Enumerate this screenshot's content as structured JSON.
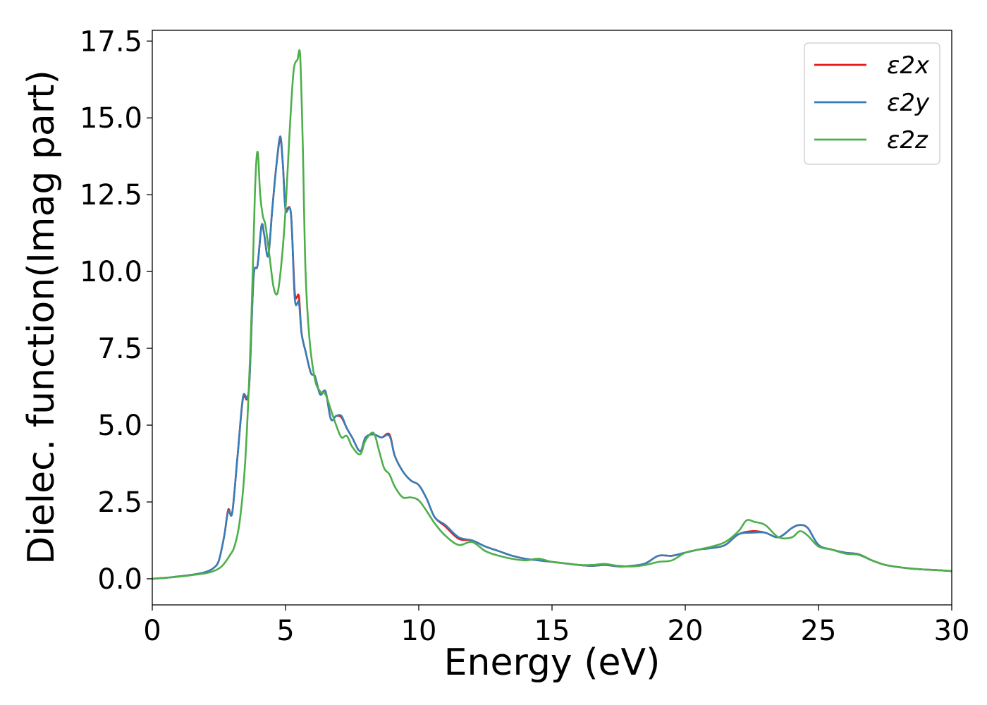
{
  "chart_data": {
    "type": "line",
    "title": "",
    "xlabel": "Energy (eV)",
    "ylabel": "Dielec. function(Imag part)",
    "xlim": [
      0,
      30
    ],
    "ylim": [
      -0.85,
      17.85
    ],
    "xticks": [
      0,
      5,
      10,
      15,
      20,
      25,
      30
    ],
    "xtick_labels": [
      "0",
      "5",
      "10",
      "15",
      "20",
      "25",
      "30"
    ],
    "yticks": [
      0.0,
      2.5,
      5.0,
      7.5,
      10.0,
      12.5,
      15.0,
      17.5
    ],
    "ytick_labels": [
      "0.0",
      "2.5",
      "5.0",
      "7.5",
      "10.0",
      "12.5",
      "15.0",
      "17.5"
    ],
    "grid": false,
    "legend_position": "top-right",
    "series": [
      {
        "name": "ε2x",
        "color": "#e41a1c",
        "x": [
          0,
          0.5,
          1,
          1.5,
          2,
          2.3,
          2.5,
          2.7,
          2.85,
          3.0,
          3.2,
          3.4,
          3.55,
          3.65,
          3.8,
          3.95,
          4.1,
          4.2,
          4.35,
          4.5,
          4.65,
          4.8,
          4.9,
          5.0,
          5.2,
          5.35,
          5.5,
          5.6,
          5.75,
          5.95,
          6.1,
          6.3,
          6.5,
          6.7,
          6.9,
          7.1,
          7.3,
          7.5,
          7.8,
          8.0,
          8.3,
          8.6,
          8.9,
          9.1,
          9.4,
          9.7,
          10.0,
          10.3,
          10.6,
          11.0,
          11.5,
          12.0,
          12.5,
          13.0,
          13.5,
          14.0,
          14.5,
          15.0,
          15.5,
          16.0,
          16.5,
          17.0,
          17.5,
          18.0,
          18.5,
          19.0,
          19.5,
          20.0,
          20.5,
          21.0,
          21.5,
          22.0,
          22.5,
          23.0,
          23.5,
          24.0,
          24.3,
          24.6,
          25.0,
          25.5,
          26.0,
          26.5,
          27.0,
          27.5,
          28.0,
          28.5,
          29.0,
          29.5,
          30.0
        ],
        "y": [
          0.0,
          0.03,
          0.08,
          0.13,
          0.22,
          0.35,
          0.6,
          1.4,
          2.25,
          2.15,
          4.0,
          5.85,
          5.85,
          6.5,
          9.8,
          10.2,
          11.5,
          11.2,
          10.5,
          12.0,
          13.4,
          14.3,
          13.5,
          12.1,
          11.9,
          9.3,
          9.2,
          8.0,
          7.4,
          6.7,
          6.6,
          6.0,
          6.1,
          5.2,
          5.3,
          5.25,
          4.9,
          4.6,
          4.15,
          4.6,
          4.7,
          4.6,
          4.7,
          4.0,
          3.5,
          3.2,
          3.05,
          2.6,
          2.0,
          1.7,
          1.3,
          1.25,
          1.05,
          0.9,
          0.75,
          0.65,
          0.6,
          0.55,
          0.5,
          0.45,
          0.42,
          0.45,
          0.4,
          0.42,
          0.5,
          0.75,
          0.75,
          0.85,
          0.95,
          1.0,
          1.1,
          1.45,
          1.55,
          1.5,
          1.35,
          1.65,
          1.75,
          1.65,
          1.1,
          0.95,
          0.85,
          0.8,
          0.6,
          0.45,
          0.38,
          0.33,
          0.3,
          0.28,
          0.25
        ]
      },
      {
        "name": "ε2y",
        "color": "#377eb8",
        "x": [
          0,
          0.5,
          1,
          1.5,
          2,
          2.3,
          2.5,
          2.7,
          2.85,
          3.0,
          3.2,
          3.4,
          3.55,
          3.65,
          3.8,
          3.95,
          4.1,
          4.2,
          4.35,
          4.5,
          4.65,
          4.8,
          4.9,
          5.0,
          5.2,
          5.35,
          5.5,
          5.6,
          5.75,
          5.95,
          6.1,
          6.3,
          6.5,
          6.7,
          6.9,
          7.1,
          7.3,
          7.5,
          7.8,
          8.0,
          8.3,
          8.6,
          8.9,
          9.1,
          9.4,
          9.7,
          10.0,
          10.3,
          10.6,
          11.0,
          11.5,
          12.0,
          12.5,
          13.0,
          13.5,
          14.0,
          14.5,
          15.0,
          15.5,
          16.0,
          16.5,
          17.0,
          17.5,
          18.0,
          18.5,
          19.0,
          19.5,
          20.0,
          20.5,
          21.0,
          21.5,
          22.0,
          22.5,
          23.0,
          23.5,
          24.0,
          24.3,
          24.6,
          25.0,
          25.5,
          26.0,
          26.5,
          27.0,
          27.5,
          28.0,
          28.5,
          29.0,
          29.5,
          30.0
        ],
        "y": [
          0.0,
          0.03,
          0.08,
          0.13,
          0.22,
          0.35,
          0.6,
          1.4,
          2.2,
          2.15,
          4.0,
          5.9,
          5.9,
          6.5,
          9.8,
          10.2,
          11.5,
          11.2,
          10.5,
          12.0,
          13.4,
          14.4,
          13.5,
          12.0,
          11.9,
          9.1,
          9.0,
          8.0,
          7.4,
          6.7,
          6.6,
          6.0,
          6.1,
          5.2,
          5.3,
          5.3,
          4.9,
          4.6,
          4.15,
          4.6,
          4.7,
          4.6,
          4.65,
          4.0,
          3.5,
          3.2,
          3.05,
          2.6,
          2.0,
          1.75,
          1.35,
          1.25,
          1.05,
          0.9,
          0.75,
          0.65,
          0.6,
          0.55,
          0.5,
          0.45,
          0.42,
          0.45,
          0.4,
          0.42,
          0.5,
          0.75,
          0.75,
          0.85,
          0.95,
          1.0,
          1.1,
          1.45,
          1.5,
          1.5,
          1.35,
          1.65,
          1.75,
          1.65,
          1.1,
          0.95,
          0.85,
          0.8,
          0.6,
          0.45,
          0.38,
          0.33,
          0.3,
          0.28,
          0.25
        ]
      },
      {
        "name": "ε2z",
        "color": "#4daf4a",
        "x": [
          0,
          0.5,
          1,
          1.5,
          2,
          2.3,
          2.6,
          2.9,
          3.1,
          3.3,
          3.5,
          3.7,
          3.85,
          3.95,
          4.05,
          4.15,
          4.25,
          4.4,
          4.55,
          4.7,
          4.85,
          5.0,
          5.15,
          5.3,
          5.45,
          5.55,
          5.65,
          5.75,
          5.9,
          6.1,
          6.3,
          6.5,
          6.7,
          6.9,
          7.1,
          7.3,
          7.5,
          7.8,
          8.0,
          8.3,
          8.5,
          8.7,
          8.9,
          9.1,
          9.4,
          9.7,
          10.0,
          10.3,
          10.6,
          11.0,
          11.5,
          12.0,
          12.5,
          13.0,
          13.5,
          14.0,
          14.5,
          15.0,
          15.5,
          16.0,
          16.5,
          17.0,
          17.5,
          18.0,
          18.5,
          19.0,
          19.5,
          20.0,
          20.5,
          21.0,
          21.5,
          22.0,
          22.3,
          22.6,
          23.0,
          23.5,
          24.0,
          24.3,
          24.6,
          25.0,
          25.5,
          26.0,
          26.5,
          27.0,
          27.5,
          28.0,
          28.5,
          29.0,
          29.5,
          30.0
        ],
        "y": [
          0.0,
          0.03,
          0.07,
          0.12,
          0.18,
          0.25,
          0.4,
          0.75,
          1.1,
          2.0,
          4.0,
          8.0,
          12.5,
          13.9,
          12.5,
          11.8,
          11.5,
          10.5,
          9.5,
          9.3,
          10.3,
          12.0,
          14.5,
          16.5,
          16.9,
          17.0,
          14.0,
          10.0,
          7.8,
          6.5,
          6.1,
          6.0,
          5.5,
          5.0,
          4.6,
          4.65,
          4.3,
          4.05,
          4.5,
          4.75,
          4.2,
          3.6,
          3.4,
          3.0,
          2.65,
          2.65,
          2.55,
          2.2,
          1.8,
          1.4,
          1.1,
          1.2,
          0.9,
          0.75,
          0.65,
          0.6,
          0.65,
          0.55,
          0.5,
          0.45,
          0.45,
          0.48,
          0.42,
          0.4,
          0.45,
          0.55,
          0.6,
          0.85,
          0.95,
          1.05,
          1.2,
          1.55,
          1.9,
          1.85,
          1.75,
          1.35,
          1.35,
          1.55,
          1.4,
          1.05,
          0.95,
          0.82,
          0.78,
          0.6,
          0.45,
          0.38,
          0.33,
          0.3,
          0.28,
          0.25
        ]
      }
    ]
  }
}
